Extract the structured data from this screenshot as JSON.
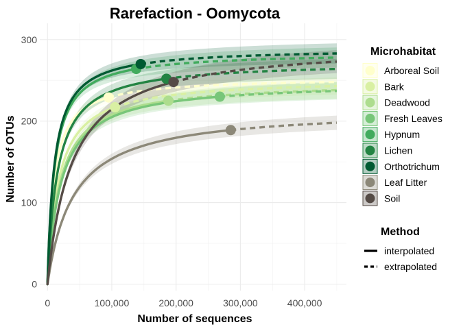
{
  "chart_data": {
    "type": "line",
    "title": "Rarefaction - Oomycota",
    "xlabel": "Number of sequences",
    "ylabel": "Number of OTUs",
    "xlim": [
      -12000,
      465000
    ],
    "ylim": [
      -8,
      320
    ],
    "x_ticks": [
      0,
      100000,
      200000,
      300000,
      400000
    ],
    "x_tick_labels": [
      "0",
      "100,000",
      "200,000",
      "300,000",
      "400,000"
    ],
    "y_ticks": [
      0,
      100,
      200,
      300
    ],
    "y_tick_labels": [
      "0",
      "100",
      "200",
      "300"
    ],
    "grid": true,
    "legend_placement": "right",
    "legend_microhabitat_title": "Microhabitat",
    "legend_method_title": "Method",
    "methods": [
      {
        "label": "interpolated",
        "style": "solid"
      },
      {
        "label": "extrapolated",
        "style": "dashed"
      }
    ],
    "x_max_extrapolation": 450000,
    "series": [
      {
        "name": "Arboreal Soil",
        "color": "#ffffcc",
        "observed": [
          95000,
          229
        ],
        "end": [
          450000,
          248
        ],
        "band": 12
      },
      {
        "name": "Bark",
        "color": "#d9f0a3",
        "observed": [
          105000,
          217
        ],
        "end": [
          450000,
          243
        ],
        "band": 12
      },
      {
        "name": "Deadwood",
        "color": "#addd8e",
        "observed": [
          188000,
          225
        ],
        "end": [
          450000,
          238
        ],
        "band": 12
      },
      {
        "name": "Fresh Leaves",
        "color": "#78c679",
        "observed": [
          268000,
          230
        ],
        "end": [
          450000,
          237
        ],
        "band": 12
      },
      {
        "name": "Hypnum",
        "color": "#41ab5d",
        "observed": [
          138000,
          264
        ],
        "end": [
          450000,
          278
        ],
        "band": 14
      },
      {
        "name": "Lichen",
        "color": "#238443",
        "observed": [
          185000,
          252
        ],
        "end": [
          450000,
          264
        ],
        "band": 14
      },
      {
        "name": "Orthotrichum",
        "color": "#005a32",
        "observed": [
          145000,
          270
        ],
        "end": [
          450000,
          283
        ],
        "band": 14
      },
      {
        "name": "Leaf Litter",
        "color": "#8c8878",
        "observed": [
          285000,
          189
        ],
        "end": [
          450000,
          198
        ],
        "band": 10
      },
      {
        "name": "Soil",
        "color": "#554b46",
        "observed": [
          196000,
          248
        ],
        "end": [
          450000,
          273
        ],
        "band": 16
      }
    ]
  }
}
